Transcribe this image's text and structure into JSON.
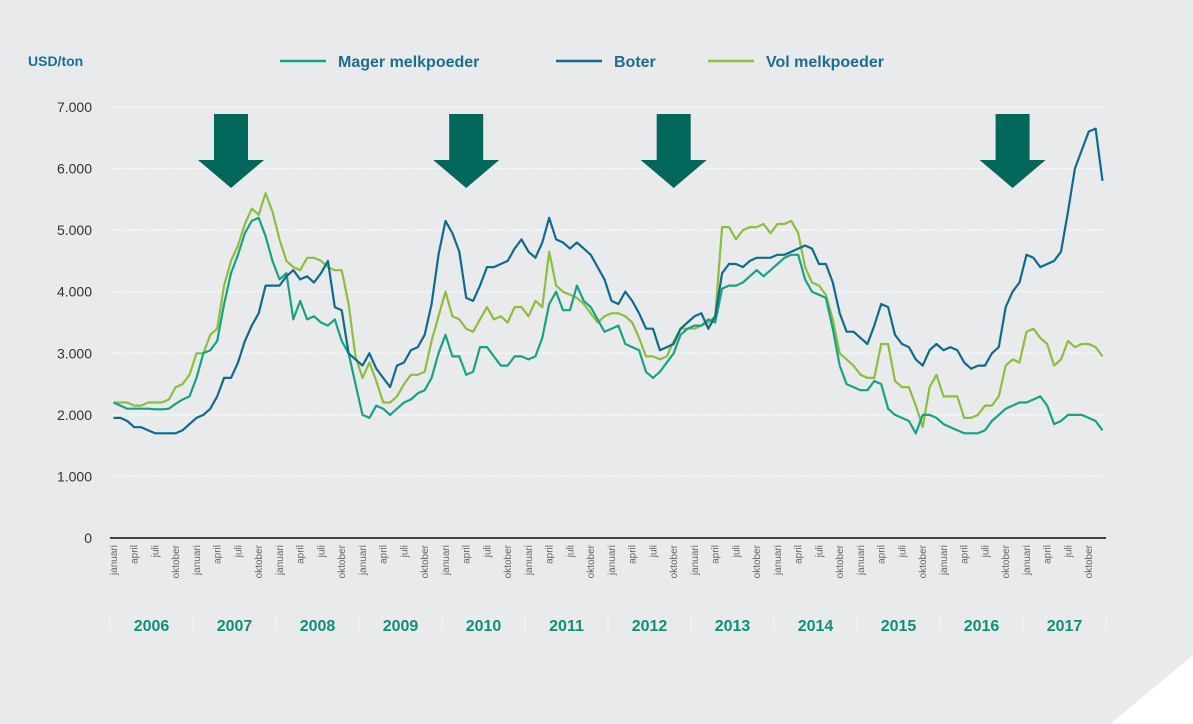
{
  "chart_data": {
    "type": "line",
    "ylabel": "USD/ton",
    "ylim": [
      0,
      7000
    ],
    "yticks": [
      {
        "value": 0,
        "label": "0"
      },
      {
        "value": 1000,
        "label": "1.000"
      },
      {
        "value": 2000,
        "label": "2.000"
      },
      {
        "value": 3000,
        "label": "3.000"
      },
      {
        "value": 4000,
        "label": "4.000"
      },
      {
        "value": 5000,
        "label": "5.000"
      },
      {
        "value": 6000,
        "label": "6.000"
      },
      {
        "value": 7000,
        "label": "7.000"
      }
    ],
    "grid": true,
    "legend": "top-center",
    "x_start": "2006-01",
    "month_count": 144,
    "month_labels": [
      "januari",
      "april",
      "juli",
      "oktober"
    ],
    "years": [
      "2006",
      "2007",
      "2008",
      "2009",
      "2010",
      "2011",
      "2012",
      "2013",
      "2014",
      "2015",
      "2016",
      "2017"
    ],
    "markers": [
      {
        "name": "arrow-2007",
        "month_index": 17
      },
      {
        "name": "arrow-2010",
        "month_index": 51
      },
      {
        "name": "arrow-2013",
        "month_index": 81
      },
      {
        "name": "arrow-2017",
        "month_index": 130
      }
    ],
    "series": [
      {
        "name": "Mager melkpoeder",
        "color": "#17a286",
        "values": [
          2200,
          2150,
          2100,
          2100,
          2100,
          2100,
          2090,
          2090,
          2100,
          2180,
          2250,
          2300,
          2600,
          3000,
          3050,
          3200,
          3800,
          4300,
          4600,
          4950,
          5150,
          5200,
          4900,
          4500,
          4200,
          4300,
          3550,
          3850,
          3550,
          3600,
          3500,
          3450,
          3550,
          3200,
          3000,
          2500,
          2000,
          1950,
          2150,
          2100,
          2000,
          2100,
          2200,
          2250,
          2350,
          2400,
          2600,
          3000,
          3300,
          2950,
          2950,
          2650,
          2700,
          3100,
          3100,
          2950,
          2800,
          2800,
          2950,
          2950,
          2900,
          2950,
          3250,
          3800,
          4000,
          3700,
          3700,
          4100,
          3850,
          3750,
          3550,
          3350,
          3400,
          3450,
          3150,
          3100,
          3050,
          2700,
          2600,
          2700,
          2850,
          3000,
          3300,
          3400,
          3450,
          3450,
          3550,
          3500,
          4050,
          4100,
          4100,
          4150,
          4250,
          4350,
          4250,
          4350,
          4450,
          4550,
          4600,
          4600,
          4200,
          4000,
          3950,
          3900,
          3400,
          2800,
          2500,
          2450,
          2400,
          2400,
          2550,
          2500,
          2100,
          2000,
          1950,
          1900,
          1700,
          2000,
          2000,
          1950,
          1850,
          1800,
          1750,
          1700,
          1700,
          1700,
          1750,
          1900,
          2000,
          2100,
          2150,
          2200,
          2200,
          2250,
          2300,
          2150,
          1850,
          1900,
          2000,
          2000,
          2000,
          1950,
          1900,
          1750
        ]
      },
      {
        "name": "Boter",
        "color": "#0f6b8c",
        "values": [
          1950,
          1950,
          1900,
          1800,
          1800,
          1750,
          1700,
          1700,
          1700,
          1700,
          1750,
          1850,
          1950,
          2000,
          2100,
          2300,
          2600,
          2600,
          2850,
          3200,
          3450,
          3650,
          4100,
          4100,
          4100,
          4250,
          4350,
          4200,
          4250,
          4150,
          4300,
          4500,
          3750,
          3700,
          3000,
          2900,
          2800,
          3000,
          2750,
          2600,
          2450,
          2800,
          2850,
          3050,
          3100,
          3300,
          3800,
          4600,
          5150,
          4950,
          4650,
          3900,
          3850,
          4100,
          4400,
          4400,
          4450,
          4500,
          4700,
          4850,
          4650,
          4550,
          4800,
          5200,
          4850,
          4800,
          4700,
          4800,
          4700,
          4600,
          4400,
          4200,
          3850,
          3800,
          4000,
          3850,
          3650,
          3400,
          3400,
          3050,
          3100,
          3150,
          3400,
          3500,
          3600,
          3650,
          3400,
          3600,
          4300,
          4450,
          4450,
          4400,
          4500,
          4550,
          4550,
          4550,
          4600,
          4600,
          4650,
          4700,
          4750,
          4700,
          4450,
          4450,
          4150,
          3650,
          3350,
          3350,
          3250,
          3150,
          3450,
          3800,
          3750,
          3300,
          3150,
          3100,
          2900,
          2800,
          3050,
          3150,
          3050,
          3100,
          3050,
          2850,
          2750,
          2800,
          2800,
          3000,
          3100,
          3750,
          4000,
          4150,
          4600,
          4550,
          4400,
          4450,
          4500,
          4650,
          5300,
          6000,
          6300,
          6600,
          6650,
          5800
        ]
      },
      {
        "name": "Vol melkpoeder",
        "color": "#8dbe3f",
        "values": [
          2200,
          2200,
          2200,
          2150,
          2150,
          2200,
          2200,
          2200,
          2250,
          2450,
          2500,
          2650,
          3000,
          3000,
          3300,
          3400,
          4100,
          4500,
          4750,
          5100,
          5350,
          5250,
          5600,
          5300,
          4850,
          4500,
          4400,
          4350,
          4550,
          4550,
          4500,
          4400,
          4350,
          4350,
          3800,
          2950,
          2600,
          2850,
          2550,
          2200,
          2200,
          2300,
          2500,
          2650,
          2650,
          2700,
          3200,
          3600,
          4000,
          3600,
          3550,
          3400,
          3350,
          3550,
          3750,
          3550,
          3600,
          3500,
          3750,
          3750,
          3600,
          3850,
          3750,
          4650,
          4100,
          4000,
          3950,
          3900,
          3800,
          3650,
          3500,
          3600,
          3650,
          3650,
          3600,
          3500,
          3250,
          2950,
          2950,
          2900,
          2950,
          3200,
          3400,
          3400,
          3400,
          3450,
          3500,
          3600,
          5050,
          5050,
          4850,
          5000,
          5050,
          5050,
          5100,
          4950,
          5100,
          5100,
          5150,
          4950,
          4400,
          4150,
          4100,
          3950,
          3550,
          3000,
          2900,
          2800,
          2650,
          2600,
          2600,
          3150,
          3150,
          2550,
          2450,
          2450,
          2150,
          1800,
          2450,
          2650,
          2300,
          2300,
          2300,
          1950,
          1950,
          2000,
          2150,
          2150,
          2300,
          2800,
          2900,
          2850,
          3350,
          3400,
          3250,
          3150,
          2800,
          2900,
          3200,
          3100,
          3150,
          3150,
          3100,
          2950
        ]
      }
    ]
  }
}
